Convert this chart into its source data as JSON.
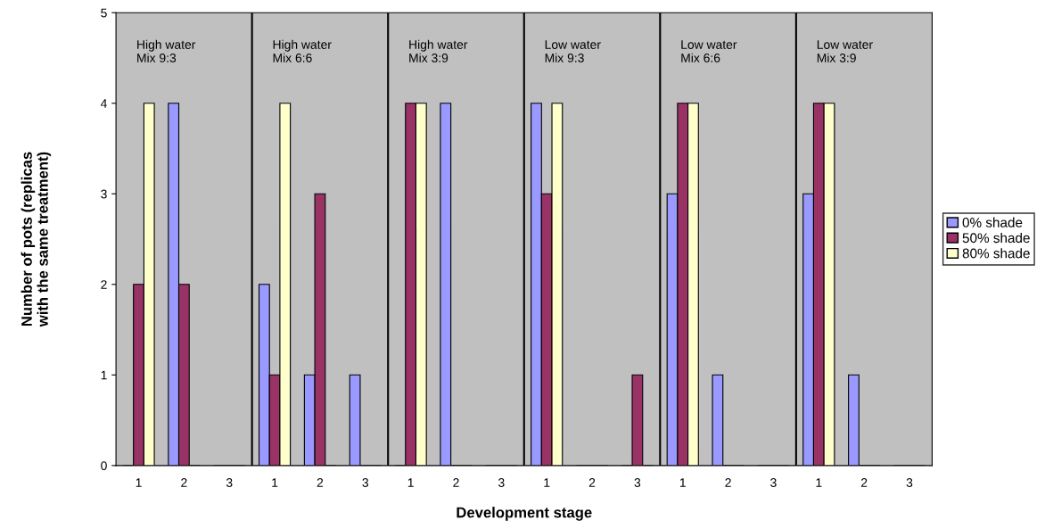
{
  "chart_data": {
    "type": "bar",
    "xlabel": "Development stage",
    "ylabel": "Number of pots (replicas\nwith the same treatment)",
    "categories": [
      "1",
      "2",
      "3",
      "1",
      "2",
      "3",
      "1",
      "2",
      "3",
      "1",
      "2",
      "3",
      "1",
      "2",
      "3",
      "1",
      "2",
      "3"
    ],
    "series": [
      {
        "name": "0% shade",
        "color": "#9999ff",
        "values": [
          0,
          4,
          0,
          2,
          1,
          1,
          0,
          4,
          0,
          4,
          0,
          0,
          3,
          1,
          0,
          3,
          1,
          0
        ]
      },
      {
        "name": "50% shade",
        "color": "#993366",
        "values": [
          2,
          2,
          0,
          1,
          3,
          0,
          4,
          0,
          0,
          3,
          0,
          1,
          4,
          0,
          0,
          4,
          0,
          0
        ]
      },
      {
        "name": "80% shade",
        "color": "#ffffcc",
        "values": [
          4,
          0,
          0,
          4,
          0,
          0,
          4,
          0,
          0,
          4,
          0,
          0,
          4,
          0,
          0,
          4,
          0,
          0
        ]
      }
    ],
    "ylim": [
      0,
      5
    ],
    "yticks": [
      0,
      1,
      2,
      3,
      4,
      5
    ],
    "grid": false,
    "legend": "right",
    "annotations": [
      "High water\nMix 9:3",
      "High water\nMix 6:6",
      "High water\nMix 3:9",
      "Low water\nMix 9:3",
      "Low water\nMix 6:6",
      "Low water\nMix 3:9"
    ]
  }
}
